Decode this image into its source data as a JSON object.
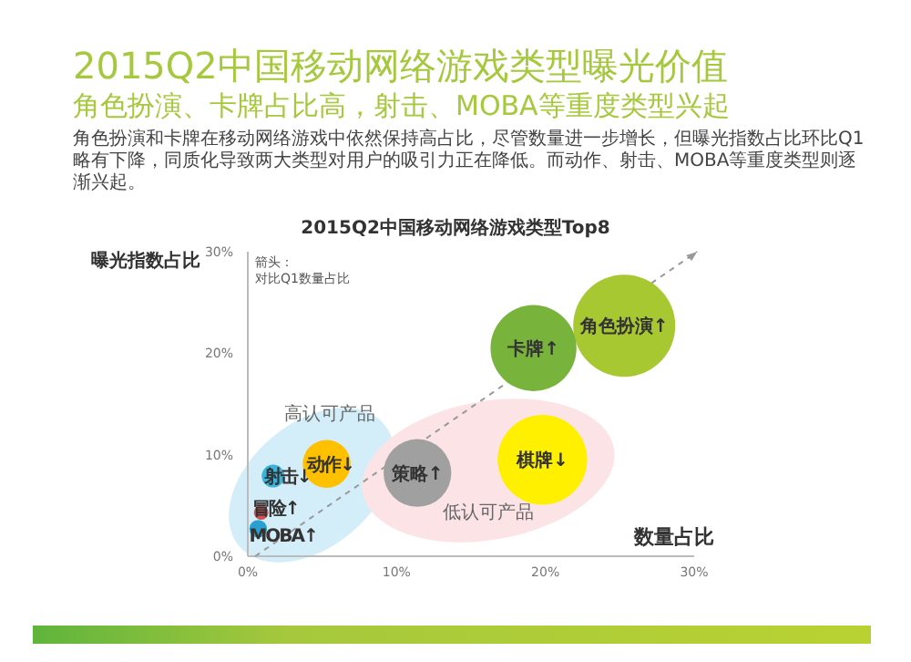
{
  "chart_data": {
    "type": "bubble",
    "title": "2015Q2中国移动网络游戏类型曝光价值",
    "subtitle": "角色扮演、卡牌占比高，射击、MOBA等重度类型兴起",
    "xlabel": "数量占比",
    "ylabel": "曝光指数占比",
    "xlim": [
      0,
      30
    ],
    "ylim": [
      0,
      30
    ],
    "xticks": [
      {
        "value": 0,
        "label": "0%"
      },
      {
        "value": 10,
        "label": "10%"
      },
      {
        "value": 20,
        "label": "20%"
      },
      {
        "value": 30,
        "label": "30%"
      }
    ],
    "yticks": [
      {
        "value": 0,
        "label": "0%"
      },
      {
        "value": 10,
        "label": "10%"
      },
      {
        "value": 20,
        "label": "20%"
      },
      {
        "value": 30,
        "label": "30%"
      }
    ],
    "series": [
      {
        "name": "角色扮演↑",
        "color": "#a8c832",
        "x": [
          25.3
        ],
        "values": [
          22.7
        ],
        "sizes": [
          1
        ]
      },
      {
        "name": "卡牌↑",
        "color": "#78b43c",
        "x": [
          19.2
        ],
        "values": [
          20.5
        ],
        "sizes": [
          0.71
        ]
      },
      {
        "name": "棋牌↓",
        "color": "#fff000",
        "x": [
          19.8
        ],
        "values": [
          9.5
        ],
        "sizes": [
          0.77
        ]
      },
      {
        "name": "策略↑",
        "color": "#a0a0a0",
        "x": [
          11.4
        ],
        "values": [
          8.2
        ],
        "sizes": [
          0.44
        ]
      },
      {
        "name": "动作↓",
        "color": "#ffc000",
        "x": [
          5.3
        ],
        "values": [
          9.1
        ],
        "sizes": [
          0.22
        ]
      },
      {
        "name": "射击↓",
        "color": "#3ab4dc",
        "x": [
          1.7
        ],
        "values": [
          7.9
        ],
        "sizes": [
          0.05
        ]
      },
      {
        "name": "冒险↑",
        "color": "#d05050",
        "x": [
          0.9
        ],
        "values": [
          4.3
        ],
        "sizes": [
          0.02
        ]
      },
      {
        "name": "MOBA↑",
        "color": "#2aa0d0",
        "x": [
          0.7
        ],
        "values": [
          2.7
        ],
        "sizes": [
          0.03
        ]
      }
    ],
    "annotations": [
      "角色扮演和卡牌在移动网络游戏中依然保持高占比，尽管数量进一步增长，但曝光指数占比环比Q1略有下降，同质化导致两大类型对用户的吸引力正在降低。而动作、射击、MOBA等重度类型则逐渐兴起。",
      "2015Q2中国移动网络游戏类型Top8",
      "箭头：对比Q1数量占比",
      "高认可产品",
      "低认可产品"
    ]
  }
}
